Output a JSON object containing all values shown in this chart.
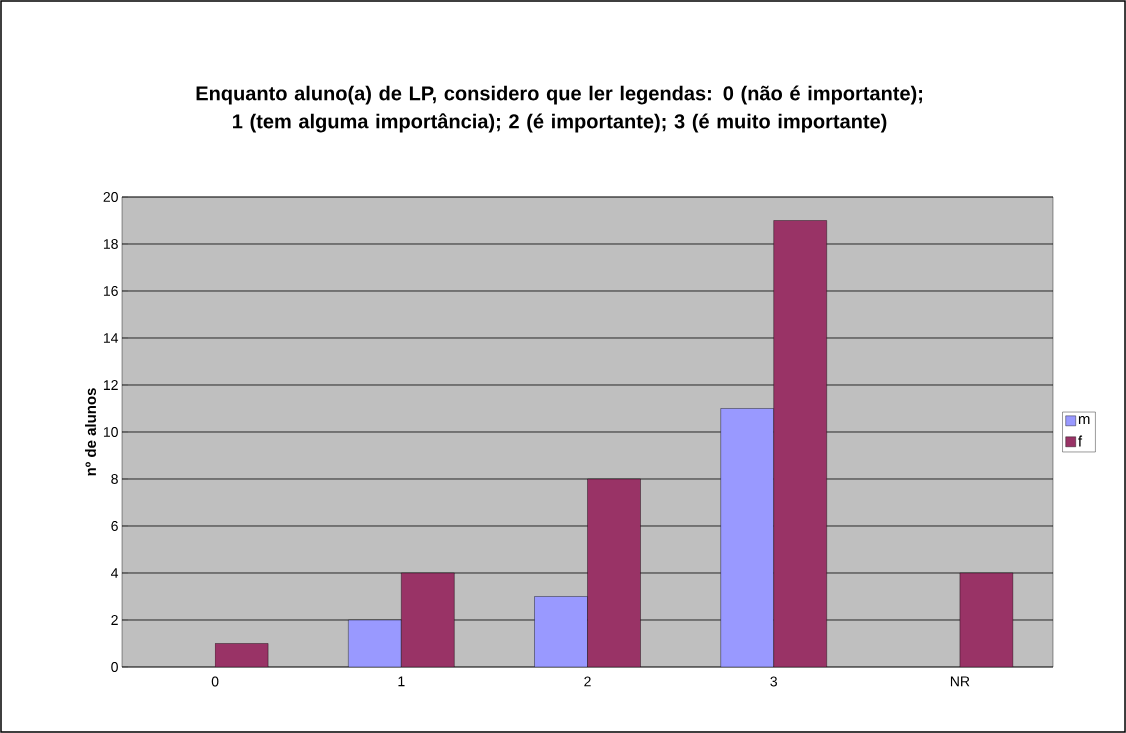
{
  "chart_data": {
    "type": "bar",
    "title": "Enquanto aluno(a) de LP, considero que ler legendas: 0 (não é importante); 1 (tem alguma importância); 2 (é importante); 3 (é muito importante)",
    "ylabel": "nº de alunos",
    "categories": [
      "0",
      "1",
      "2",
      "3",
      "NR"
    ],
    "series": [
      {
        "name": "m",
        "color": "#9999ff",
        "values": [
          null,
          2,
          3,
          11,
          null
        ]
      },
      {
        "name": "f",
        "color": "#993366",
        "values": [
          1,
          4,
          8,
          19,
          4
        ]
      }
    ],
    "ylim": [
      0,
      20
    ],
    "yticks": [
      0,
      2,
      4,
      6,
      8,
      10,
      12,
      14,
      16,
      18,
      20
    ],
    "grid": "y",
    "legend": "right"
  }
}
